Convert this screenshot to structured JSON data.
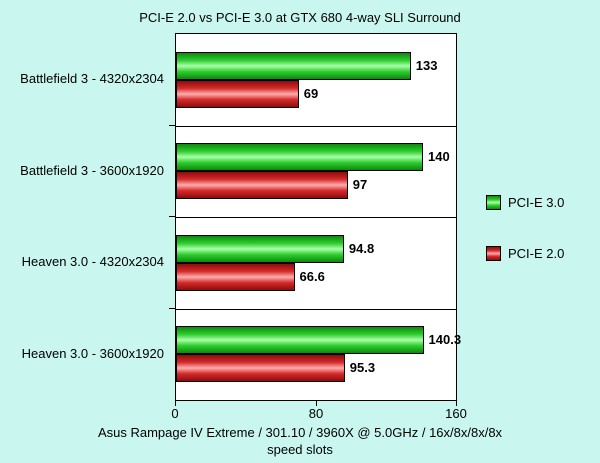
{
  "chart_data": {
    "type": "bar",
    "orientation": "horizontal",
    "title": "PCI-E 2.0 vs PCI-E 3.0 at GTX 680 4-way SLI Surround",
    "categories": [
      "Battlefield 3 - 4320x2304",
      "Battlefield 3 - 3600x1920",
      "Heaven 3.0 - 4320x2304",
      "Heaven 3.0 - 3600x1920"
    ],
    "series": [
      {
        "name": "PCI-E 3.0",
        "color": "#00cc00",
        "values": [
          133,
          140,
          94.8,
          140.3
        ]
      },
      {
        "name": "PCI-E 2.0",
        "color": "#ee1111",
        "values": [
          69,
          97,
          66.6,
          95.3
        ]
      }
    ],
    "xlim": [
      0,
      160
    ],
    "xticks": [
      0,
      80,
      160
    ],
    "xlabel_line1": "Asus Rampage IV Extreme / 301.10 / 3960X @ 5.0GHz / 16x/8x/8x/8x",
    "xlabel_line2": "speed slots",
    "legend_position": "right",
    "grid": false
  },
  "colors": {
    "background": "#c9f7ef",
    "plot_background": "#ffffff",
    "bar_green": "#00cc00",
    "bar_red": "#ee1111",
    "text": "#000000"
  }
}
